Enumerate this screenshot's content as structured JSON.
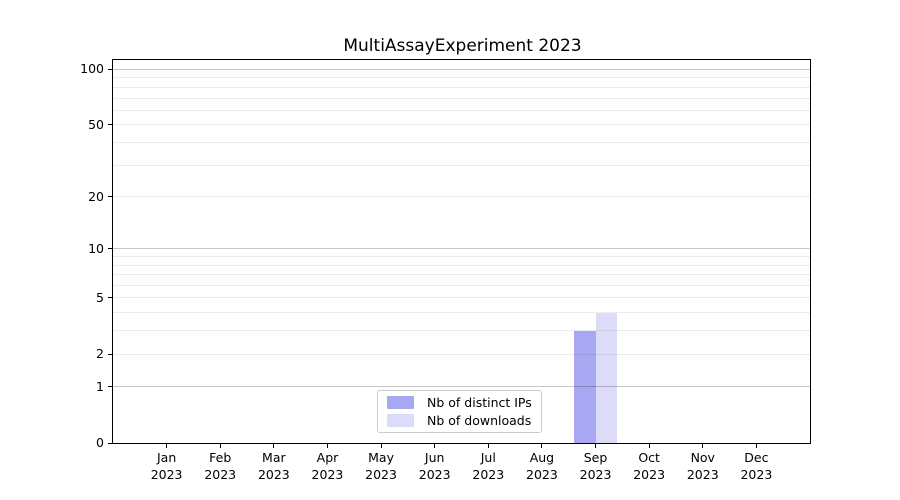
{
  "chart_data": {
    "type": "bar",
    "title": "MultiAssayExperiment 2023",
    "categories": [
      {
        "month": "Jan",
        "year": "2023"
      },
      {
        "month": "Feb",
        "year": "2023"
      },
      {
        "month": "Mar",
        "year": "2023"
      },
      {
        "month": "Apr",
        "year": "2023"
      },
      {
        "month": "May",
        "year": "2023"
      },
      {
        "month": "Jun",
        "year": "2023"
      },
      {
        "month": "Jul",
        "year": "2023"
      },
      {
        "month": "Aug",
        "year": "2023"
      },
      {
        "month": "Sep",
        "year": "2023"
      },
      {
        "month": "Oct",
        "year": "2023"
      },
      {
        "month": "Nov",
        "year": "2023"
      },
      {
        "month": "Dec",
        "year": "2023"
      }
    ],
    "series": [
      {
        "name": "Nb of distinct IPs",
        "color": "#a8a8f2",
        "values": [
          0,
          0,
          0,
          0,
          0,
          0,
          0,
          0,
          3,
          0,
          0,
          0
        ]
      },
      {
        "name": "Nb of downloads",
        "color": "#dcdcf8",
        "values": [
          0,
          0,
          0,
          0,
          0,
          0,
          0,
          0,
          4,
          0,
          0,
          0
        ]
      }
    ],
    "xlabel": "",
    "ylabel": "",
    "yscale": "log1p",
    "yticks": [
      0,
      1,
      2,
      5,
      10,
      20,
      50,
      100
    ],
    "ylim": [
      0,
      115
    ],
    "grid": "horizontal",
    "grid_major": [
      1,
      10,
      100
    ],
    "grid_minor": [
      2,
      3,
      4,
      5,
      6,
      7,
      8,
      9,
      20,
      30,
      40,
      50,
      60,
      70,
      80,
      90
    ],
    "legend": {
      "position": "lower-center-inside",
      "entries": [
        "Nb of distinct IPs",
        "Nb of downloads"
      ]
    }
  }
}
